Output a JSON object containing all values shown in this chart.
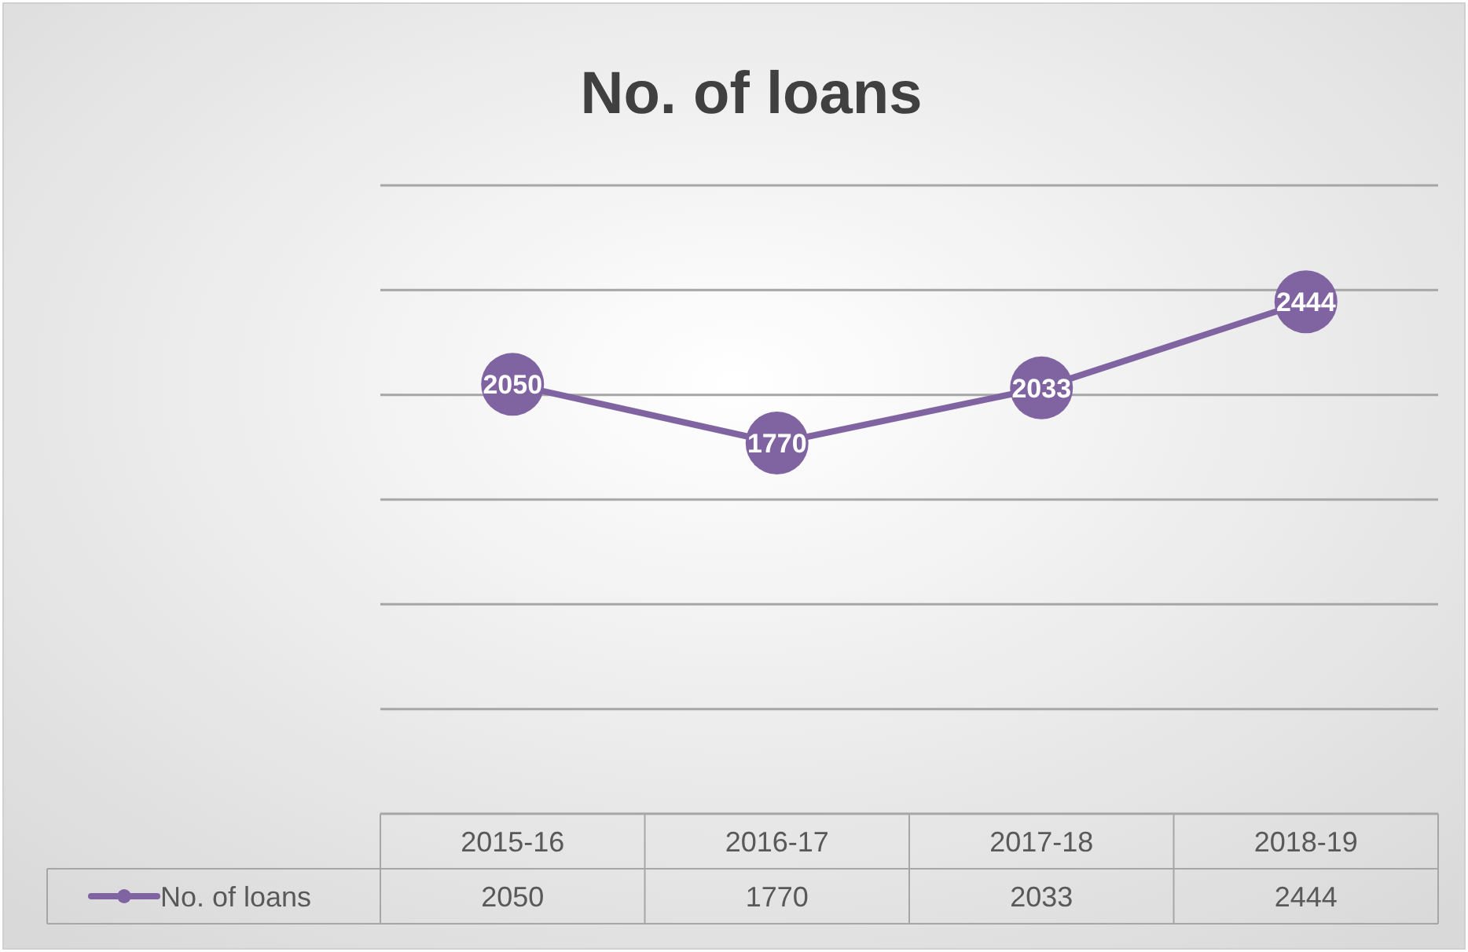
{
  "chart_data": {
    "type": "line",
    "title": "No. of loans",
    "categories": [
      "2015-16",
      "2016-17",
      "2017-18",
      "2018-19"
    ],
    "series": [
      {
        "name": "No. of loans",
        "color": "#8064a2",
        "values": [
          2050,
          1770,
          2033,
          2444
        ],
        "value_labels": [
          "2050",
          "1770",
          "2033",
          "2444"
        ]
      }
    ],
    "ylim": [
      0,
      3000
    ],
    "yticks": [
      {
        "value": 0,
        "label": null
      },
      {
        "value": 500,
        "label": null
      },
      {
        "value": 1000,
        "label": null
      },
      {
        "value": 1500,
        "label": null
      },
      {
        "value": 2000,
        "label": null
      },
      {
        "value": 2500,
        "label": null
      },
      {
        "value": 3000,
        "label": null
      }
    ],
    "annotations": [
      "2050",
      "1770",
      "2033",
      "2444"
    ],
    "grid": "y",
    "tick_labels": "x",
    "data_labels": true,
    "legend": "bottom",
    "marker": "circle",
    "line_style": "solid"
  }
}
